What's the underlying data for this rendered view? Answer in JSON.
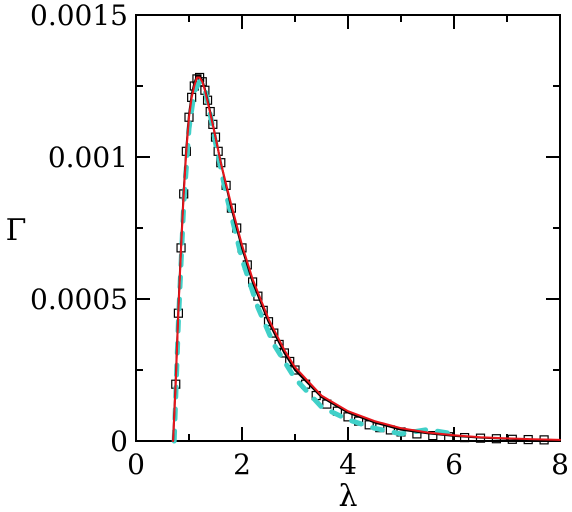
{
  "chart_data": {
    "type": "line",
    "title": "",
    "xlabel": "λ",
    "ylabel": "Γ",
    "xlim": [
      0,
      8
    ],
    "ylim": [
      0,
      0.0015
    ],
    "x_ticks": [
      0,
      2,
      4,
      6,
      8
    ],
    "x_tick_labels": [
      "0",
      "2",
      "4",
      "6",
      "8"
    ],
    "y_ticks": [
      0,
      0.0005,
      0.001,
      0.0015
    ],
    "y_tick_labels": [
      "0",
      "0.0005",
      "0.001",
      "0.0015"
    ],
    "grid": false,
    "legend": "none",
    "series": [
      {
        "style": "solid-line",
        "color": "#000000",
        "x": [
          0.7,
          0.75,
          0.8,
          0.85,
          0.9,
          0.95,
          1.0,
          1.05,
          1.1,
          1.15,
          1.2,
          1.25,
          1.3,
          1.4,
          1.5,
          1.6,
          1.8,
          2.0,
          2.2,
          2.5,
          2.8,
          3.0,
          3.5,
          4.0,
          4.5,
          5.0,
          5.5,
          6.0,
          6.5,
          7.0,
          7.5,
          8.0
        ],
        "y": [
          0.0,
          0.00022,
          0.00047,
          0.00069,
          0.00088,
          0.00103,
          0.00115,
          0.00122,
          0.00126,
          0.001285,
          0.001285,
          0.00127,
          0.00124,
          0.00116,
          0.00107,
          0.00098,
          0.00082,
          0.00068,
          0.00056,
          0.00042,
          0.00031,
          0.00025,
          0.000155,
          0.0001,
          6.5e-05,
          4e-05,
          2.7e-05,
          1.8e-05,
          1.2e-05,
          8e-06,
          5e-06,
          3e-06
        ]
      },
      {
        "style": "solid-line",
        "color": "#e8151b",
        "x": [
          0.7,
          0.75,
          0.8,
          0.85,
          0.9,
          0.95,
          1.0,
          1.05,
          1.1,
          1.15,
          1.2,
          1.25,
          1.3,
          1.4,
          1.5,
          1.6,
          1.8,
          2.0,
          2.2,
          2.5,
          2.8,
          3.0,
          3.5,
          4.0,
          4.5,
          5.0,
          5.5,
          6.0,
          6.5,
          7.0,
          7.5,
          8.0
        ],
        "y": [
          0.0,
          0.00021,
          0.00046,
          0.00068,
          0.00087,
          0.00102,
          0.00114,
          0.00121,
          0.00125,
          0.00128,
          0.00128,
          0.001265,
          0.001235,
          0.001155,
          0.00107,
          0.00098,
          0.00083,
          0.00069,
          0.00057,
          0.00043,
          0.00032,
          0.00026,
          0.00016,
          0.000105,
          7e-05,
          4.5e-05,
          3e-05,
          2e-05,
          1.3e-05,
          9e-06,
          6e-06,
          4e-06
        ]
      },
      {
        "style": "dashed-line",
        "color": "#40d0c8",
        "x": [
          0.72,
          0.8,
          0.9,
          1.0,
          1.1,
          1.2,
          1.3,
          1.4,
          1.5,
          1.7,
          2.0,
          2.3,
          2.6,
          3.0,
          3.5,
          4.0,
          4.5,
          5.0,
          5.5,
          6.0
        ],
        "y": [
          0.0,
          0.00042,
          0.00083,
          0.0011,
          0.00123,
          0.001265,
          0.00124,
          0.00115,
          0.00105,
          0.00087,
          0.00064,
          0.00047,
          0.00034,
          0.00022,
          0.00012,
          7.5e-05,
          4.5e-05,
          2.5e-05,
          4e-05,
          2.5e-05
        ]
      },
      {
        "style": "square-markers",
        "color": "#000000",
        "x": [
          0.75,
          0.8,
          0.85,
          0.9,
          0.95,
          1.0,
          1.05,
          1.1,
          1.15,
          1.2,
          1.25,
          1.3,
          1.35,
          1.4,
          1.45,
          1.5,
          1.55,
          1.6,
          1.7,
          1.8,
          1.9,
          2.0,
          2.1,
          2.2,
          2.3,
          2.4,
          2.5,
          2.6,
          2.7,
          2.8,
          2.9,
          3.0,
          3.2,
          3.4,
          3.6,
          3.8,
          4.0,
          4.2,
          4.4,
          4.6,
          4.8,
          5.0,
          5.3,
          5.6,
          5.9,
          6.2,
          6.5,
          6.8,
          7.1,
          7.4,
          7.7
        ],
        "y": [
          0.0002,
          0.00045,
          0.00068,
          0.00087,
          0.00102,
          0.00114,
          0.00121,
          0.00125,
          0.001275,
          0.00128,
          0.001265,
          0.001235,
          0.0012,
          0.00116,
          0.001115,
          0.00107,
          0.00102,
          0.00098,
          0.0009,
          0.00082,
          0.00075,
          0.00068,
          0.00062,
          0.00056,
          0.00051,
          0.00046,
          0.00042,
          0.00038,
          0.00034,
          0.00031,
          0.00028,
          0.00025,
          0.0002,
          0.00016,
          0.00013,
          0.000105,
          8.5e-05,
          7e-05,
          5.7e-05,
          4.7e-05,
          3.9e-05,
          3.2e-05,
          2.5e-05,
          1.9e-05,
          1.5e-05,
          1.2e-05,
          1e-05,
          8e-06,
          6e-06,
          5e-06,
          4e-06
        ]
      }
    ]
  }
}
